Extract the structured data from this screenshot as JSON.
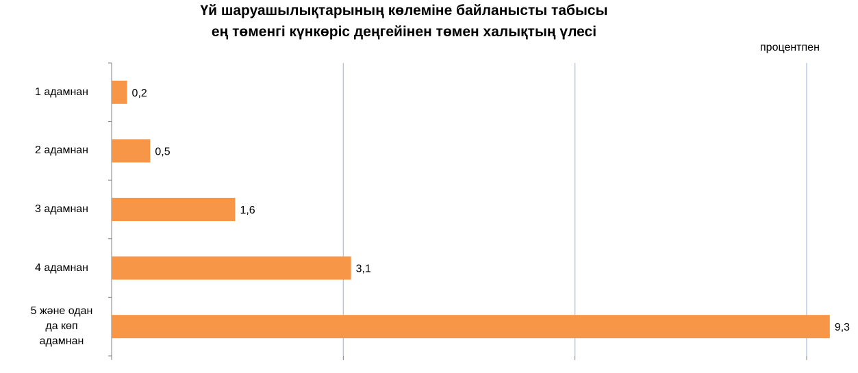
{
  "chart_data": {
    "type": "bar",
    "orientation": "horizontal",
    "title_lines": [
      "Үй шаруашылықтарының көлеміне байланысты табысы",
      "ең төменгі күнкөріс деңгейінен төмен халықтың үлесі"
    ],
    "unit_label": "процентпен",
    "categories": [
      "1 адамнан",
      "2 адамнан",
      "3 адамнан",
      "4 адамнан",
      "5 және одан да көп адамнан"
    ],
    "values": [
      0.2,
      0.5,
      1.6,
      3.1,
      9.3
    ],
    "value_labels": [
      "0,2",
      "0,5",
      "1,6",
      "3,1",
      "9,3"
    ],
    "xlim": [
      0,
      9
    ],
    "gridlines": [
      3,
      6,
      9
    ],
    "grid": true,
    "colors": {
      "bar": "#F79646",
      "grid": "#A9C4E6",
      "axis": "#808080"
    }
  }
}
